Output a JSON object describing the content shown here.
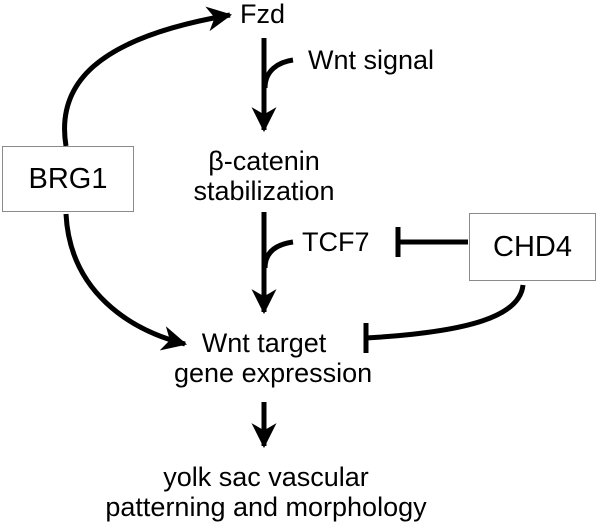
{
  "nodes": {
    "fzd": "Fzd",
    "wnt_signal": "Wnt signal",
    "beta_catenin_line1": "β-catenin",
    "beta_catenin_line2": "stabilization",
    "tcf7": "TCF7",
    "wnt_target_line1": "Wnt target",
    "wnt_target_line2": "gene expression",
    "outcome_line1": "yolk sac vascular",
    "outcome_line2": "patterning and morphology"
  },
  "boxes": {
    "brg1": "BRG1",
    "chd4": "CHD4"
  },
  "edges": [
    {
      "from": "BRG1",
      "to": "Fzd",
      "type": "activation"
    },
    {
      "from": "BRG1",
      "to": "Wnt target gene expression",
      "type": "activation"
    },
    {
      "from": "Fzd",
      "to": "β-catenin stabilization",
      "type": "activation",
      "input": "Wnt signal"
    },
    {
      "from": "β-catenin stabilization",
      "to": "Wnt target gene expression",
      "type": "activation",
      "input": "TCF7"
    },
    {
      "from": "CHD4",
      "to": "TCF7",
      "type": "inhibition"
    },
    {
      "from": "CHD4",
      "to": "Wnt target gene expression",
      "type": "inhibition"
    },
    {
      "from": "Wnt target gene expression",
      "to": "yolk sac vascular patterning and morphology",
      "type": "activation"
    }
  ],
  "colors": {
    "line": "#000000",
    "box_border": "#8a8a8a"
  }
}
